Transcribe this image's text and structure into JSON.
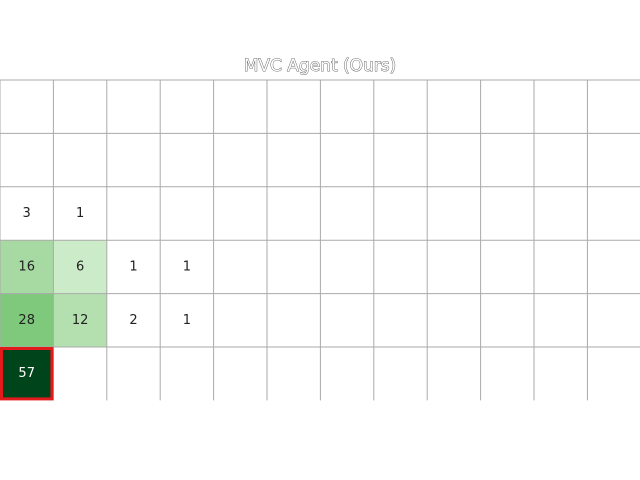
{
  "chart_data": {
    "type": "heatmap",
    "title": "MVC Agent (Ours)",
    "rows": 6,
    "cols": 12,
    "cells": [
      {
        "row": 2,
        "col": 0,
        "value": 3
      },
      {
        "row": 2,
        "col": 1,
        "value": 1
      },
      {
        "row": 3,
        "col": 0,
        "value": 16
      },
      {
        "row": 3,
        "col": 1,
        "value": 6
      },
      {
        "row": 3,
        "col": 2,
        "value": 1
      },
      {
        "row": 3,
        "col": 3,
        "value": 1
      },
      {
        "row": 4,
        "col": 0,
        "value": 28
      },
      {
        "row": 4,
        "col": 1,
        "value": 12
      },
      {
        "row": 4,
        "col": 2,
        "value": 2
      },
      {
        "row": 4,
        "col": 3,
        "value": 1
      },
      {
        "row": 5,
        "col": 0,
        "value": 57
      }
    ],
    "highlighted_cell": {
      "row": 5,
      "col": 0
    },
    "colors": {
      "scale": [
        "#ffffff",
        "#c5e8c0",
        "#7dc87a",
        "#00441b"
      ],
      "grid": "#aaaaaa",
      "highlight": "#e31a1c",
      "dark_text": "#222222",
      "light_text": "#ffffff"
    }
  }
}
